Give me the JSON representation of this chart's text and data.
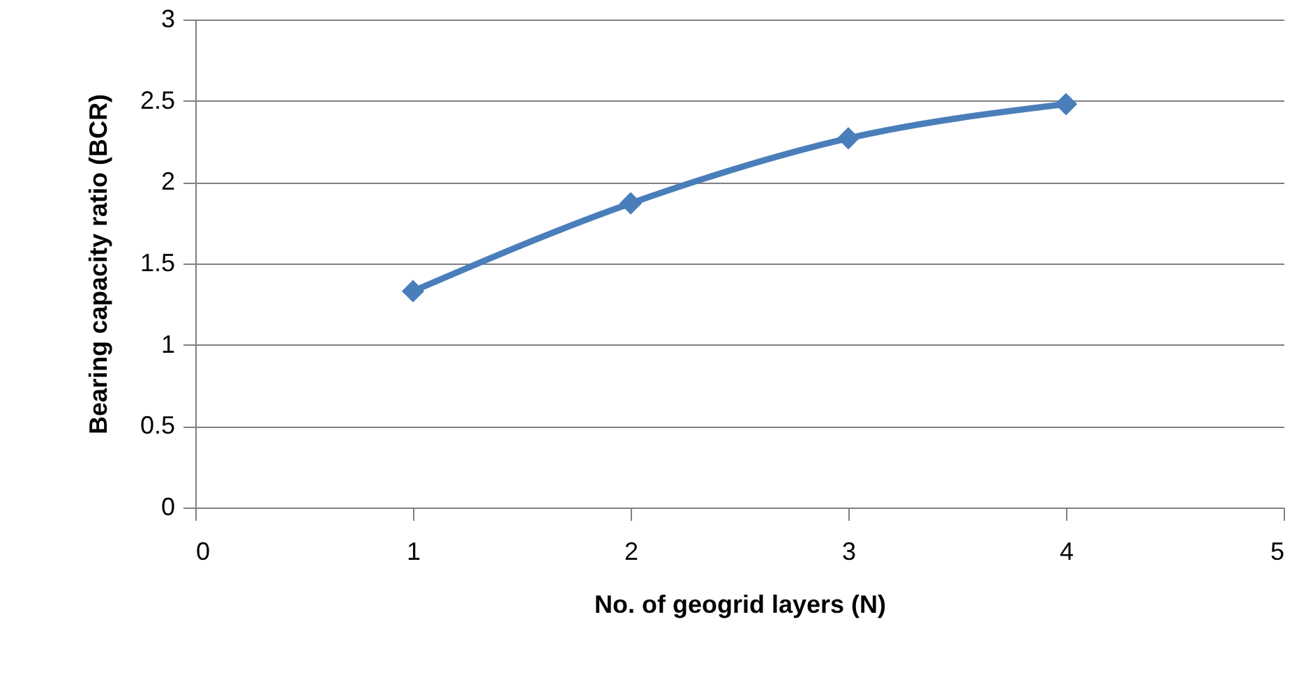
{
  "chart_data": {
    "type": "line",
    "xlabel": "No. of geogrid layers (N)",
    "ylabel": "Bearing capacity ratio (BCR)",
    "x": [
      1,
      2,
      3,
      4
    ],
    "series": [
      {
        "color": "#4a7ebb",
        "values": [
          1.33,
          1.87,
          2.27,
          2.48
        ]
      }
    ],
    "xlim": [
      0,
      5
    ],
    "xticks": [
      0,
      1,
      2,
      3,
      4,
      5
    ],
    "ylim": [
      0,
      3
    ],
    "yticks": [
      0,
      0.5,
      1,
      1.5,
      2,
      2.5,
      3
    ],
    "grid": "y",
    "marker": "diamond",
    "line_style": "solid"
  }
}
